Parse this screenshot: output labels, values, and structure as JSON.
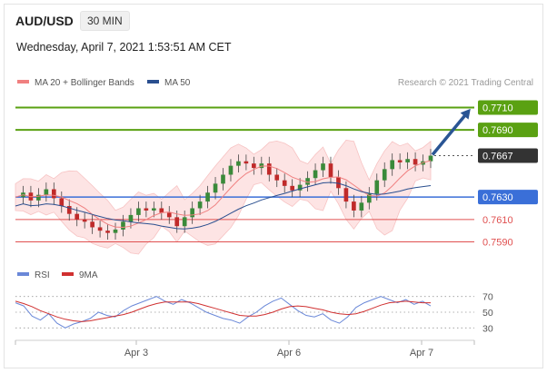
{
  "header": {
    "symbol": "AUD/USD",
    "timeframe": "30 MIN",
    "datetime": "Wednesday, April 7, 2021 1:53:51 AM CET"
  },
  "legend": {
    "items": [
      {
        "label": "MA 20 + Bollinger Bands",
        "color": "#f08080"
      },
      {
        "label": "MA 50",
        "color": "#2a4f8f"
      }
    ],
    "credit": "Research © 2021 Trading Central"
  },
  "colors": {
    "resistance": "#5aa112",
    "pivot": "#3a6fd8",
    "support": "#e05050",
    "current": "#333333",
    "arrow": "#2a5594",
    "band_fill": "#fde4e4",
    "candle_up": "#3a8a3a",
    "candle_down": "#c02a2a",
    "rsi": "#6a88d8",
    "rsi_ma": "#d03030"
  },
  "chart_data": {
    "type": "line",
    "title": "",
    "xlabel": "",
    "ylabel": "",
    "x_ticks": [
      "Apr 3",
      "Apr 6",
      "Apr 7"
    ],
    "ylim": [
      0.7575,
      0.7725
    ],
    "levels": [
      {
        "value": 0.771,
        "label": "0.7710",
        "kind": "resistance"
      },
      {
        "value": 0.769,
        "label": "0.7690",
        "kind": "resistance"
      },
      {
        "value": 0.7667,
        "label": "0.7667",
        "kind": "current"
      },
      {
        "value": 0.763,
        "label": "0.7630",
        "kind": "pivot"
      },
      {
        "value": 0.761,
        "label": "0.7610",
        "kind": "support"
      },
      {
        "value": 0.759,
        "label": "0.7590",
        "kind": "support"
      }
    ],
    "price_series": [
      0.763,
      0.7634,
      0.7627,
      0.7632,
      0.7637,
      0.7629,
      0.7622,
      0.7615,
      0.761,
      0.7608,
      0.7603,
      0.76,
      0.7598,
      0.7601,
      0.7608,
      0.7614,
      0.762,
      0.7618,
      0.762,
      0.7616,
      0.7612,
      0.7604,
      0.7612,
      0.762,
      0.7626,
      0.7634,
      0.7642,
      0.765,
      0.7658,
      0.7662,
      0.766,
      0.7656,
      0.766,
      0.765,
      0.7645,
      0.764,
      0.7636,
      0.7641,
      0.7647,
      0.7654,
      0.766,
      0.7648,
      0.7638,
      0.7626,
      0.7618,
      0.7625,
      0.7633,
      0.7645,
      0.7655,
      0.7663,
      0.7661,
      0.7664,
      0.7659,
      0.7662,
      0.7667
    ],
    "forecast": {
      "from": 0.7667,
      "to": 0.771
    },
    "indicators": [
      {
        "name": "RSI",
        "ylim": [
          20,
          80
        ],
        "ticks": [
          70,
          50,
          30
        ],
        "series": [
          {
            "name": "RSI",
            "values": [
              62,
              58,
              45,
              40,
              48,
              36,
              30,
              35,
              38,
              42,
              50,
              46,
              44,
              52,
              58,
              62,
              66,
              70,
              64,
              60,
              66,
              62,
              56,
              50,
              46,
              42,
              40,
              36,
              44,
              50,
              58,
              64,
              68,
              60,
              52,
              46,
              44,
              48,
              40,
              36,
              44,
              56,
              62,
              66,
              70,
              66,
              62,
              66,
              60,
              64,
              58
            ]
          },
          {
            "name": "9MA",
            "values": [
              64,
              61,
              57,
              52,
              48,
              44,
              41,
              39,
              38,
              39,
              41,
              43,
              45,
              47,
              50,
              54,
              58,
              61,
              63,
              63,
              63,
              63,
              61,
              58,
              55,
              52,
              49,
              46,
              45,
              45,
              47,
              50,
              54,
              57,
              58,
              57,
              55,
              53,
              50,
              48,
              47,
              48,
              51,
              55,
              59,
              62,
              63,
              64,
              63,
              62,
              62
            ]
          }
        ]
      }
    ]
  }
}
